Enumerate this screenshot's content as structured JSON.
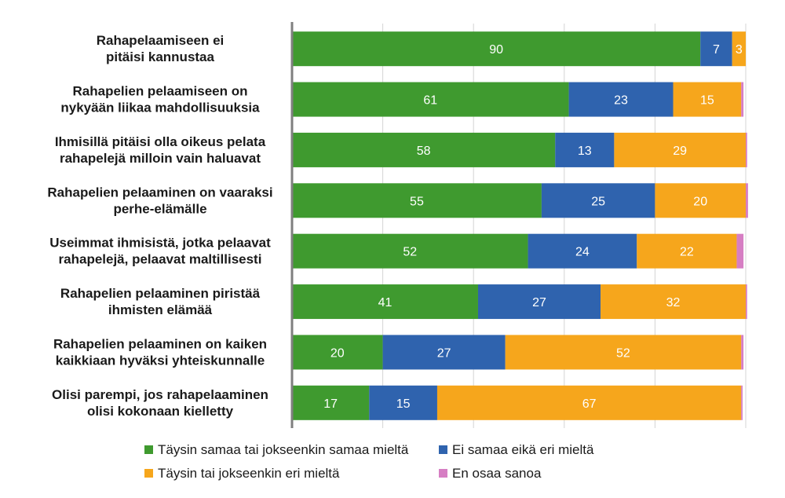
{
  "chart_data": {
    "type": "bar",
    "orientation": "horizontal",
    "stacked": true,
    "xlim": [
      0,
      100
    ],
    "grid": true,
    "legend_position": "bottom",
    "categories": [
      [
        "Rahapelaamiseen ei",
        "pitäisi kannustaa"
      ],
      [
        "Rahapelien pelaamiseen on",
        "nykyään liikaa mahdollisuuksia"
      ],
      [
        "Ihmisillä pitäisi olla oikeus pelata",
        "rahapelejä milloin vain haluavat"
      ],
      [
        "Rahapelien pelaaminen on vaaraksi",
        "perhe-elämälle"
      ],
      [
        "Useimmat ihmisistä, jotka pelaavat",
        "rahapelejä, pelaavat maltillisesti"
      ],
      [
        "Rahapelien pelaaminen piristää",
        "ihmisten elämää"
      ],
      [
        "Rahapelien pelaaminen on kaiken",
        "kaikkiaan hyväksi yhteiskunnalle"
      ],
      [
        "Olisi parempi, jos rahapelaaminen",
        "olisi kokonaan kielletty"
      ]
    ],
    "series": [
      {
        "name": "Täysin samaa tai jokseenkin samaa mieltä",
        "color": "#3f9a2f",
        "values": [
          90,
          61,
          58,
          55,
          52,
          41,
          20,
          17
        ],
        "labels": [
          "90",
          "61",
          "58",
          "55",
          "52",
          "41",
          "20",
          "17"
        ]
      },
      {
        "name": "Ei samaa eikä eri mieltä",
        "color": "#2f63ae",
        "values": [
          7,
          23,
          13,
          25,
          24,
          27,
          27,
          15
        ],
        "labels": [
          "7",
          "23",
          "13",
          "25",
          "24",
          "27",
          "27",
          "15"
        ]
      },
      {
        "name": "Täysin tai jokseenkin eri mieltä",
        "color": "#f6a61c",
        "values": [
          3,
          15,
          29,
          20,
          22,
          32,
          52,
          67
        ],
        "labels": [
          "3",
          "15",
          "29",
          "20",
          "22",
          "32",
          "52",
          "67"
        ]
      },
      {
        "name": "En osaa sanoa",
        "color": "#d67ec3",
        "values": [
          0,
          0.5,
          0.3,
          0.5,
          1.5,
          0.3,
          0.5,
          0.3
        ],
        "labels": [
          "",
          "",
          "",
          "",
          "",
          "",
          "",
          ""
        ]
      }
    ]
  }
}
